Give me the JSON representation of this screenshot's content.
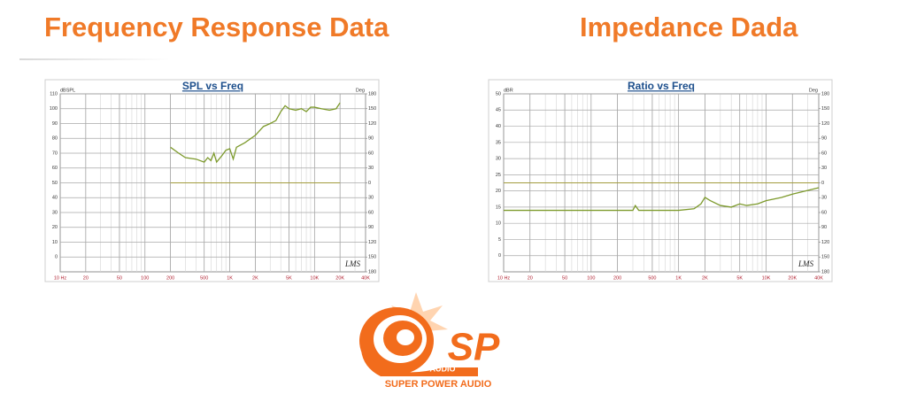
{
  "headings": [
    "Frequency Response Data",
    "Impedance Dada"
  ],
  "logo": {
    "mark": "SP",
    "sub": "AUDIO",
    "name": "SUPER POWER AUDIO"
  },
  "chart_data": [
    {
      "type": "line",
      "title": "SPL vs Freq",
      "y_label": "dBSPL",
      "y2_label": "Deg",
      "watermark": "LMS",
      "xscale": "log",
      "grid": true,
      "xlim": [
        10,
        40000
      ],
      "xticks": [
        {
          "value": 10,
          "label": "10 Hz"
        },
        20,
        50,
        100,
        200,
        500,
        {
          "value": 1000,
          "label": "1K"
        },
        {
          "value": 2000,
          "label": "2K"
        },
        {
          "value": 5000,
          "label": "5K"
        },
        {
          "value": 10000,
          "label": "10K"
        },
        {
          "value": 20000,
          "label": "20K"
        },
        {
          "value": 40000,
          "label": "40K"
        }
      ],
      "ylim": [
        -10,
        110
      ],
      "yticks": [
        0,
        10,
        20,
        30,
        40,
        50,
        60,
        70,
        80,
        90,
        100,
        110
      ],
      "y2lim": [
        -180,
        180
      ],
      "y2ticks": [
        180,
        150,
        120,
        90,
        60,
        30,
        0,
        {
          "value": -30,
          "label": "30"
        },
        {
          "value": -60,
          "label": "60"
        },
        {
          "value": -90,
          "label": "90"
        },
        {
          "value": -120,
          "label": "120"
        },
        {
          "value": -150,
          "label": "150"
        },
        {
          "value": -180,
          "label": "180"
        }
      ],
      "series": [
        {
          "color": "#7d9a2c",
          "x": [
            200,
            250,
            300,
            400,
            500,
            550,
            600,
            650,
            700,
            800,
            900,
            1000,
            1100,
            1200,
            1500,
            2000,
            2500,
            3000,
            3500,
            4000,
            4500,
            5000,
            6000,
            7000,
            8000,
            9000,
            10000,
            12000,
            15000,
            18000,
            20000
          ],
          "values": [
            74,
            70,
            67,
            66,
            64,
            67,
            65,
            70,
            64,
            68,
            72,
            73,
            66,
            74,
            77,
            82,
            88,
            90,
            92,
            98,
            102,
            100,
            99,
            100,
            98,
            101,
            101,
            100,
            99,
            100,
            104
          ]
        },
        {
          "color": "#a39c3e",
          "axis": "y2",
          "x": [
            200,
            20000
          ],
          "values": [
            0,
            0
          ]
        }
      ]
    },
    {
      "type": "line",
      "title": "Ratio vs Freq",
      "y_label": "dBR",
      "y2_label": "Deg",
      "watermark": "LMS",
      "xscale": "log",
      "grid": true,
      "xlim": [
        10,
        40000
      ],
      "xticks": [
        {
          "value": 10,
          "label": "10 Hz"
        },
        20,
        50,
        100,
        200,
        500,
        {
          "value": 1000,
          "label": "1K"
        },
        {
          "value": 2000,
          "label": "2K"
        },
        {
          "value": 5000,
          "label": "5K"
        },
        {
          "value": 10000,
          "label": "10K"
        },
        {
          "value": 20000,
          "label": "20K"
        },
        {
          "value": 40000,
          "label": "40K"
        }
      ],
      "ylim": [
        -5,
        50
      ],
      "yticks": [
        0,
        5,
        10,
        15,
        20,
        25,
        30,
        35,
        40,
        45,
        50
      ],
      "y2lim": [
        -180,
        180
      ],
      "y2ticks": [
        180,
        150,
        120,
        90,
        60,
        30,
        0,
        {
          "value": -30,
          "label": "30"
        },
        {
          "value": -60,
          "label": "60"
        },
        {
          "value": -90,
          "label": "90"
        },
        {
          "value": -120,
          "label": "120"
        },
        {
          "value": -150,
          "label": "150"
        },
        {
          "value": -180,
          "label": "180"
        }
      ],
      "series": [
        {
          "color": "#7d9a2c",
          "x": [
            10,
            100,
            300,
            320,
            350,
            1000,
            1500,
            1800,
            2000,
            2300,
            3000,
            4000,
            5000,
            6000,
            8000,
            10000,
            15000,
            20000,
            40000
          ],
          "values": [
            14,
            14,
            14,
            15.5,
            14,
            14,
            14.5,
            16,
            18,
            17,
            15.5,
            15,
            16,
            15.5,
            16,
            17,
            18,
            19,
            21
          ]
        },
        {
          "color": "#a39c3e",
          "axis": "y2",
          "x": [
            10,
            40000
          ],
          "values": [
            0,
            0
          ]
        }
      ]
    }
  ]
}
